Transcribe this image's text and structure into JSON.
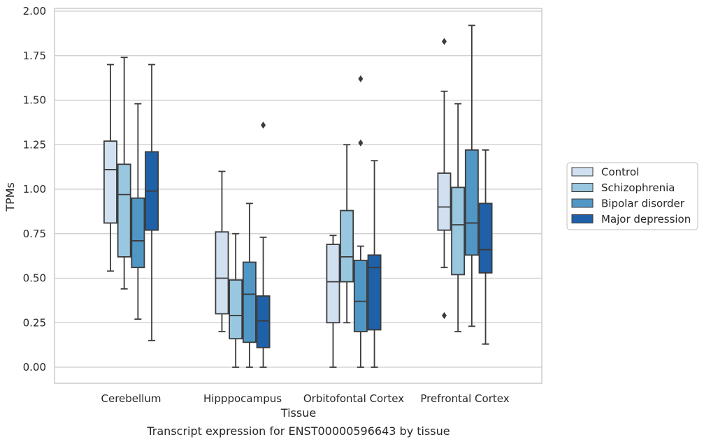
{
  "chart_data": {
    "type": "box",
    "caption": "Transcript expression for ENST00000596643 by tissue",
    "xlabel": "Tissue",
    "ylabel": "TPMs",
    "ylim": [
      -0.09,
      2.02
    ],
    "yticks": [
      "0.00",
      "0.25",
      "0.50",
      "0.75",
      "1.00",
      "1.25",
      "1.50",
      "1.75",
      "2.00"
    ],
    "ytick_values": [
      0,
      0.25,
      0.5,
      0.75,
      1.0,
      1.25,
      1.5,
      1.75,
      2.0
    ],
    "grid": "horizontal",
    "legend_placement": "right",
    "categories": [
      "Cerebellum",
      "Hipppocampus",
      "Orbitofontal Cortex",
      "Prefrontal Cortex"
    ],
    "series": [
      {
        "name": "Control",
        "color": "#d0e0f0",
        "boxes": [
          {
            "whisker_low": 0.54,
            "q1": 0.81,
            "median": 1.11,
            "q3": 1.27,
            "whisker_high": 1.7,
            "outliers": []
          },
          {
            "whisker_low": 0.2,
            "q1": 0.3,
            "median": 0.5,
            "q3": 0.76,
            "whisker_high": 1.1,
            "outliers": []
          },
          {
            "whisker_low": 0.0,
            "q1": 0.25,
            "median": 0.48,
            "q3": 0.69,
            "whisker_high": 0.74,
            "outliers": []
          },
          {
            "whisker_low": 0.56,
            "q1": 0.77,
            "median": 0.9,
            "q3": 1.09,
            "whisker_high": 1.55,
            "outliers": [
              1.83,
              0.29
            ]
          }
        ]
      },
      {
        "name": "Schizophrenia",
        "color": "#9ac7e0",
        "boxes": [
          {
            "whisker_low": 0.44,
            "q1": 0.62,
            "median": 0.97,
            "q3": 1.14,
            "whisker_high": 1.74,
            "outliers": []
          },
          {
            "whisker_low": 0.0,
            "q1": 0.16,
            "median": 0.29,
            "q3": 0.49,
            "whisker_high": 0.75,
            "outliers": []
          },
          {
            "whisker_low": 0.25,
            "q1": 0.48,
            "median": 0.62,
            "q3": 0.88,
            "whisker_high": 1.25,
            "outliers": []
          },
          {
            "whisker_low": 0.2,
            "q1": 0.52,
            "median": 0.8,
            "q3": 1.01,
            "whisker_high": 1.48,
            "outliers": []
          }
        ]
      },
      {
        "name": "Bipolar disorder",
        "color": "#5097c6",
        "boxes": [
          {
            "whisker_low": 0.27,
            "q1": 0.56,
            "median": 0.71,
            "q3": 0.95,
            "whisker_high": 1.48,
            "outliers": []
          },
          {
            "whisker_low": 0.0,
            "q1": 0.14,
            "median": 0.41,
            "q3": 0.59,
            "whisker_high": 0.92,
            "outliers": []
          },
          {
            "whisker_low": 0.0,
            "q1": 0.2,
            "median": 0.37,
            "q3": 0.6,
            "whisker_high": 0.68,
            "outliers": [
              1.26,
              1.62
            ]
          },
          {
            "whisker_low": 0.23,
            "q1": 0.63,
            "median": 0.81,
            "q3": 1.22,
            "whisker_high": 1.92,
            "outliers": []
          }
        ]
      },
      {
        "name": "Major depression",
        "color": "#1f61a8",
        "boxes": [
          {
            "whisker_low": 0.15,
            "q1": 0.77,
            "median": 0.99,
            "q3": 1.21,
            "whisker_high": 1.7,
            "outliers": []
          },
          {
            "whisker_low": 0.0,
            "q1": 0.11,
            "median": 0.26,
            "q3": 0.4,
            "whisker_high": 0.73,
            "outliers": [
              1.36
            ]
          },
          {
            "whisker_low": 0.0,
            "q1": 0.21,
            "median": 0.56,
            "q3": 0.63,
            "whisker_high": 1.16,
            "outliers": []
          },
          {
            "whisker_low": 0.13,
            "q1": 0.53,
            "median": 0.66,
            "q3": 0.92,
            "whisker_high": 1.22,
            "outliers": []
          }
        ]
      }
    ]
  }
}
